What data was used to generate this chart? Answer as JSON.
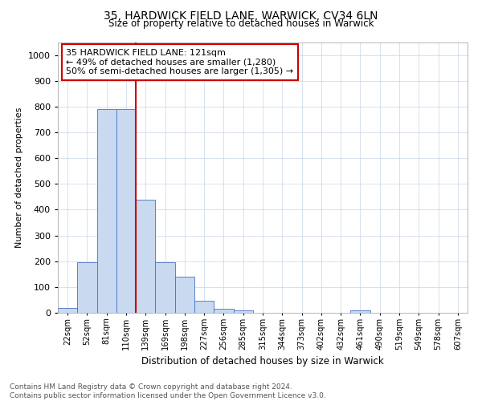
{
  "title1": "35, HARDWICK FIELD LANE, WARWICK, CV34 6LN",
  "title2": "Size of property relative to detached houses in Warwick",
  "xlabel": "Distribution of detached houses by size in Warwick",
  "ylabel": "Number of detached properties",
  "categories": [
    "22sqm",
    "52sqm",
    "81sqm",
    "110sqm",
    "139sqm",
    "169sqm",
    "198sqm",
    "227sqm",
    "256sqm",
    "285sqm",
    "315sqm",
    "344sqm",
    "373sqm",
    "402sqm",
    "432sqm",
    "461sqm",
    "490sqm",
    "519sqm",
    "549sqm",
    "578sqm",
    "607sqm"
  ],
  "values": [
    20,
    195,
    790,
    790,
    440,
    195,
    140,
    47,
    17,
    10,
    0,
    0,
    0,
    0,
    0,
    10,
    0,
    0,
    0,
    0,
    0
  ],
  "bar_color": "#c8d9f0",
  "bar_edge_color": "#4472c4",
  "vline_x": 3.5,
  "vline_color": "#cc0000",
  "annotation_text": "35 HARDWICK FIELD LANE: 121sqm\n← 49% of detached houses are smaller (1,280)\n50% of semi-detached houses are larger (1,305) →",
  "annotation_box_color": "#ffffff",
  "annotation_box_edge": "#cc0000",
  "ylim": [
    0,
    1050
  ],
  "yticks": [
    0,
    100,
    200,
    300,
    400,
    500,
    600,
    700,
    800,
    900,
    1000
  ],
  "footnote": "Contains HM Land Registry data © Crown copyright and database right 2024.\nContains public sector information licensed under the Open Government Licence v3.0.",
  "background_color": "#ffffff",
  "grid_color": "#c8d4e8"
}
